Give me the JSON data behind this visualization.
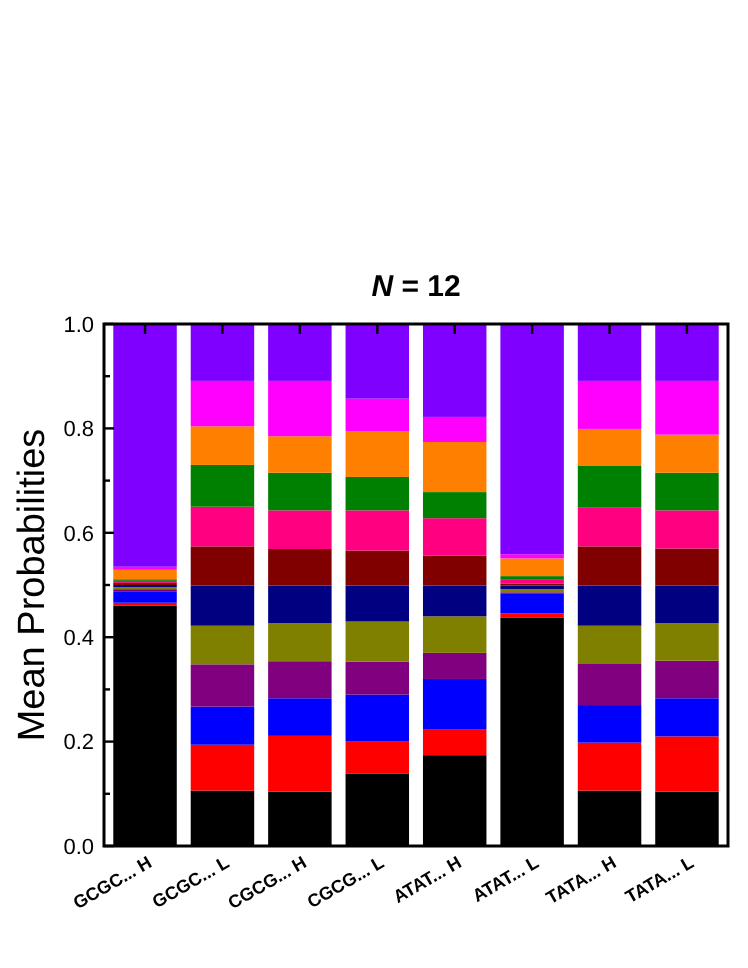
{
  "chart_data": {
    "type": "bar",
    "stacked": true,
    "title": "N = 12",
    "ylabel": "Mean Probabilities",
    "categories": [
      "GCGC... H",
      "GCGC... L",
      "CGCG... H",
      "CGCG... L",
      "ATAT... H",
      "ATAT... L",
      "TATA... H",
      "TATA... L"
    ],
    "ylim": [
      0,
      1
    ],
    "yticks": [
      {
        "value": 0,
        "label": "0.0"
      },
      {
        "value": 0.1,
        "label": null
      },
      {
        "value": 0.2,
        "label": "0.2"
      },
      {
        "value": 0.3,
        "label": null
      },
      {
        "value": 0.4,
        "label": "0.4"
      },
      {
        "value": 0.5,
        "label": null
      },
      {
        "value": 0.6,
        "label": "0.6"
      },
      {
        "value": 0.7,
        "label": null
      },
      {
        "value": 0.8,
        "label": "0.8"
      },
      {
        "value": 0.9,
        "label": null
      },
      {
        "value": 1,
        "label": "1.0"
      }
    ],
    "grid": false,
    "series": [
      {
        "color": "#000000",
        "values": [
          0.46,
          0.106,
          0.104,
          0.139,
          0.174,
          0.437,
          0.106,
          0.104
        ]
      },
      {
        "color": "#ff0000",
        "values": [
          0.006,
          0.088,
          0.107,
          0.062,
          0.05,
          0.009,
          0.092,
          0.106
        ]
      },
      {
        "color": "#0000ff",
        "values": [
          0.022,
          0.073,
          0.072,
          0.089,
          0.096,
          0.037,
          0.072,
          0.073
        ]
      },
      {
        "color": "#800080",
        "values": [
          0.004,
          0.081,
          0.071,
          0.063,
          0.05,
          0.003,
          0.08,
          0.072
        ]
      },
      {
        "color": "#808000",
        "values": [
          0.004,
          0.074,
          0.073,
          0.077,
          0.07,
          0.006,
          0.072,
          0.072
        ]
      },
      {
        "color": "#000080",
        "values": [
          0.004,
          0.077,
          0.072,
          0.069,
          0.059,
          0.007,
          0.077,
          0.072
        ]
      },
      {
        "color": "#800000",
        "values": [
          0.004,
          0.075,
          0.07,
          0.067,
          0.057,
          0.004,
          0.075,
          0.071
        ]
      },
      {
        "color": "#ff0080",
        "values": [
          0.004,
          0.076,
          0.074,
          0.077,
          0.072,
          0.007,
          0.074,
          0.073
        ]
      },
      {
        "color": "#008000",
        "values": [
          0.003,
          0.08,
          0.072,
          0.064,
          0.05,
          0.007,
          0.08,
          0.072
        ]
      },
      {
        "color": "#ff8000",
        "values": [
          0.018,
          0.074,
          0.07,
          0.088,
          0.096,
          0.034,
          0.071,
          0.073
        ]
      },
      {
        "color": "#ff00ff",
        "values": [
          0.006,
          0.087,
          0.106,
          0.062,
          0.048,
          0.008,
          0.092,
          0.103
        ]
      },
      {
        "color": "#8000ff",
        "values": [
          0.465,
          0.109,
          0.109,
          0.143,
          0.178,
          0.441,
          0.109,
          0.109
        ]
      }
    ]
  }
}
